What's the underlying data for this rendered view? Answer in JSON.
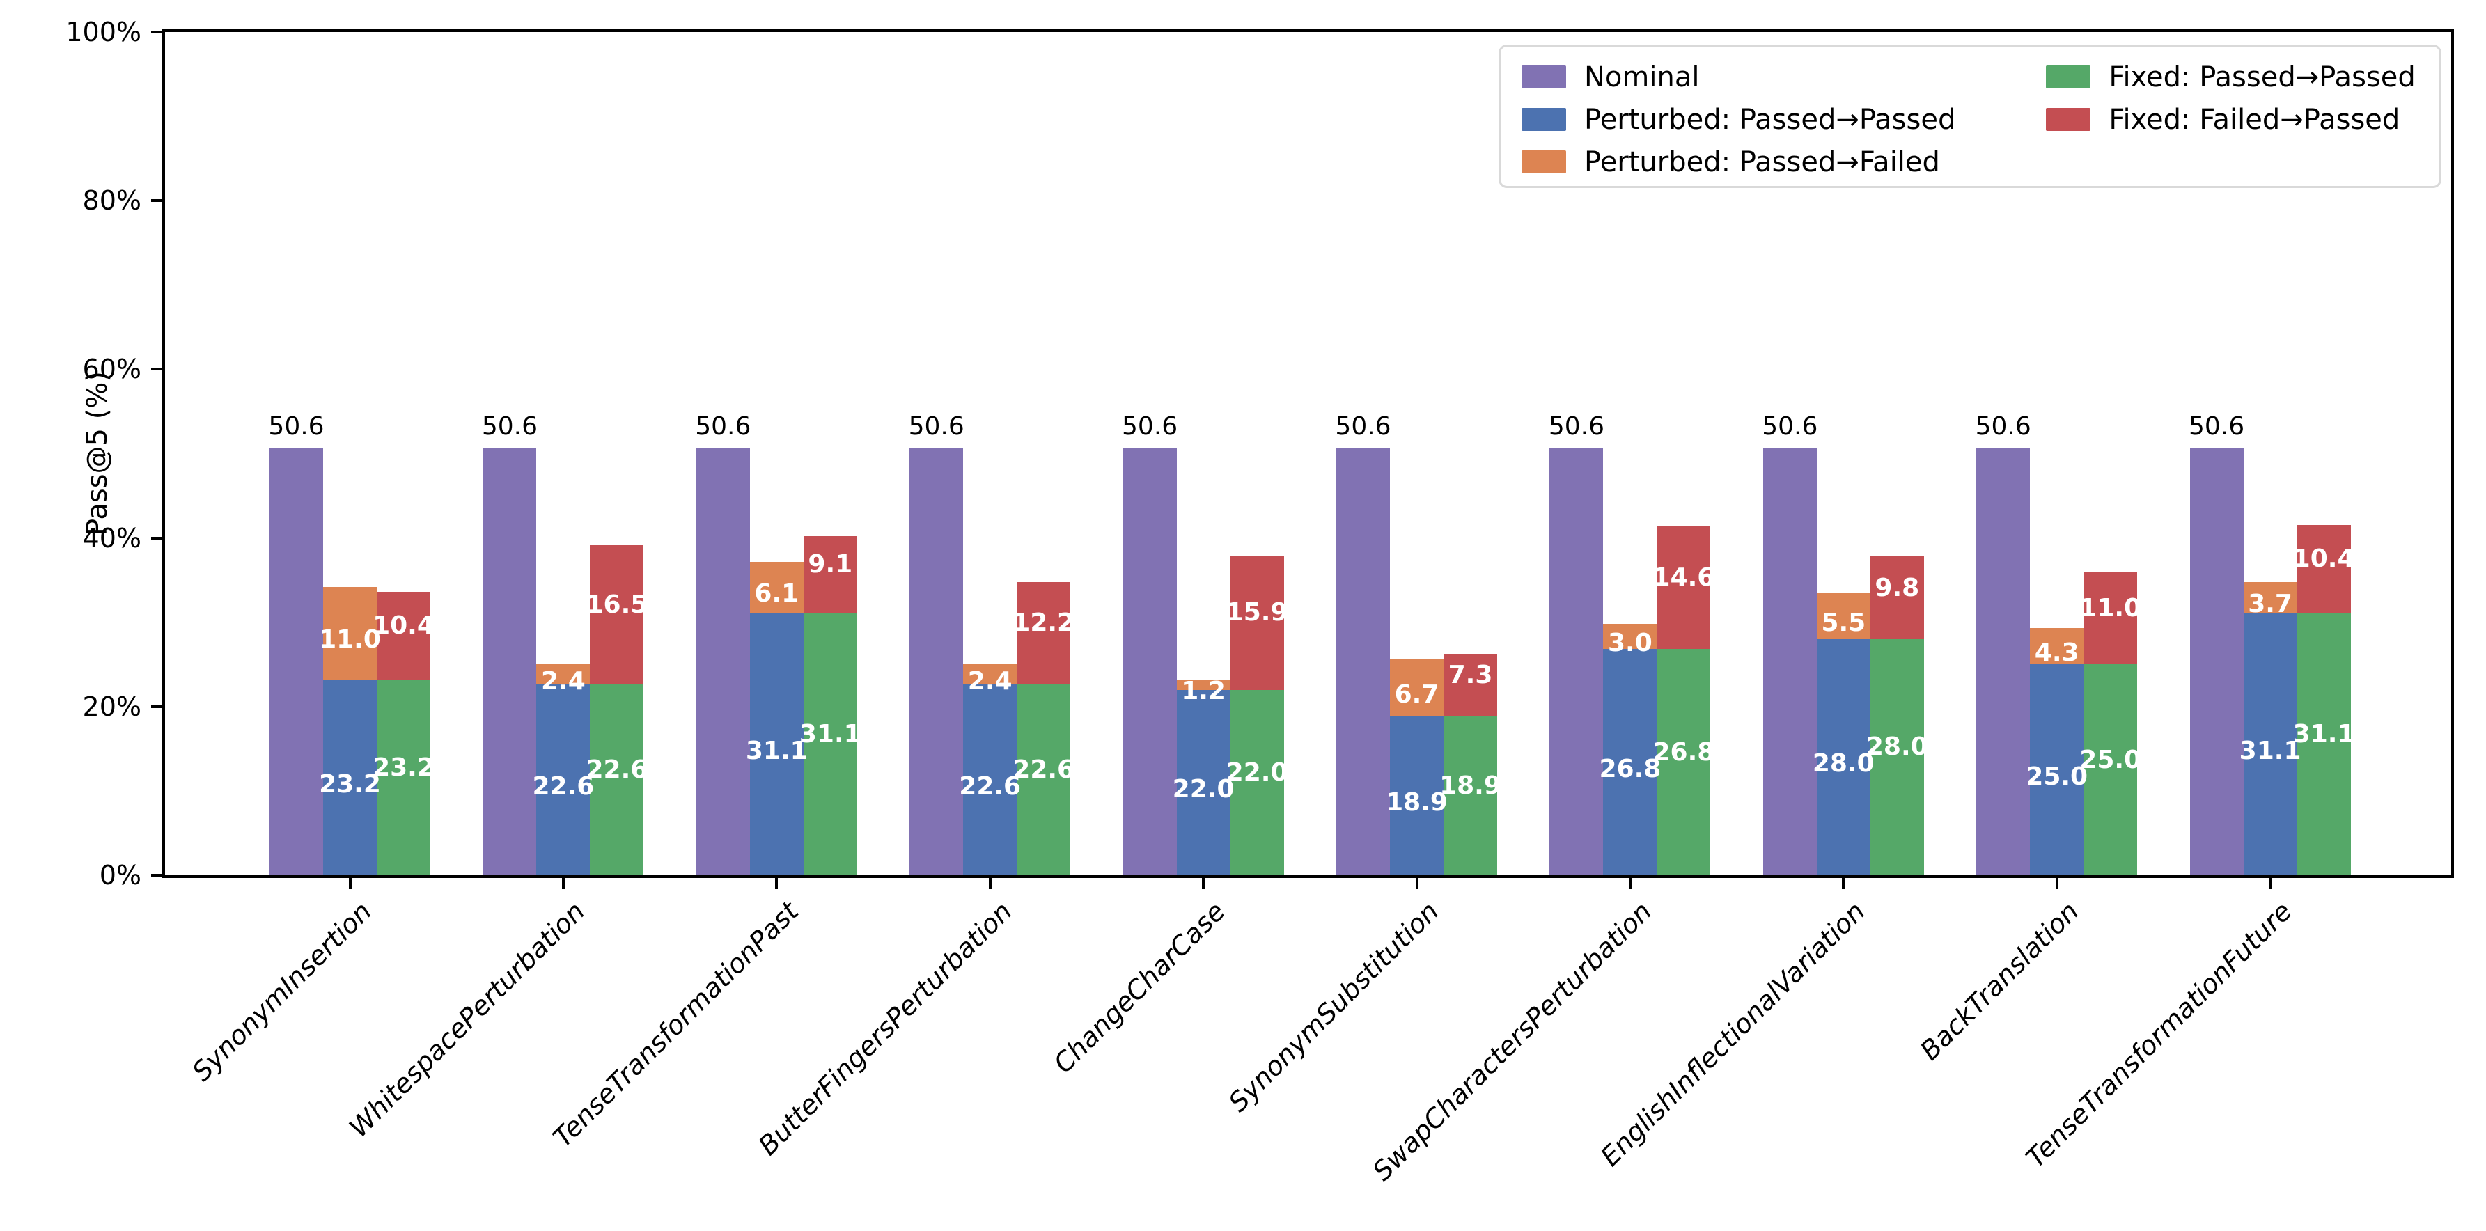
{
  "chart_data": {
    "type": "bar",
    "title": "",
    "ylabel": "Pass@5 (%)",
    "ylim": [
      0,
      100
    ],
    "grid": false,
    "legend_position": "upper right",
    "value_label_decimals": 1,
    "yticks": [
      "0%",
      "20%",
      "40%",
      "60%",
      "80%",
      "100%"
    ],
    "ytick_values": [
      0,
      20,
      40,
      60,
      80,
      100
    ],
    "categories": [
      "SynonymInsertion",
      "WhitespacePerturbation",
      "TenseTransformationPast",
      "ButterFingersPerturbation",
      "ChangeCharCase",
      "SynonymSubstitution",
      "SwapCharactersPerturbation",
      "EnglishInflectionalVariation",
      "BackTranslation",
      "TenseTransformationFuture"
    ],
    "series": [
      {
        "name": "Nominal",
        "color": "#8172b3",
        "stack": "nominal",
        "values": [
          50.6,
          50.6,
          50.6,
          50.6,
          50.6,
          50.6,
          50.6,
          50.6,
          50.6,
          50.6
        ]
      },
      {
        "name": "Perturbed: Passed→Passed",
        "color": "#4c72b0",
        "stack": "perturbed",
        "values": [
          23.2,
          22.6,
          31.1,
          22.6,
          22.0,
          18.9,
          26.8,
          28.0,
          25.0,
          31.1
        ]
      },
      {
        "name": "Perturbed: Passed→Failed",
        "color": "#dd8452",
        "stack": "perturbed",
        "values": [
          11.0,
          2.4,
          6.1,
          2.4,
          1.2,
          6.7,
          3.0,
          5.5,
          4.3,
          3.7
        ]
      },
      {
        "name": "Fixed: Passed→Passed",
        "color": "#55a868",
        "stack": "fixed",
        "values": [
          23.2,
          22.6,
          31.1,
          22.6,
          22.0,
          18.9,
          26.8,
          28.0,
          25.0,
          31.1
        ]
      },
      {
        "name": "Fixed: Failed→Passed",
        "color": "#c44e52",
        "stack": "fixed",
        "values": [
          10.4,
          16.5,
          9.1,
          12.2,
          15.9,
          7.3,
          14.6,
          9.8,
          11.0,
          10.4
        ]
      }
    ]
  }
}
